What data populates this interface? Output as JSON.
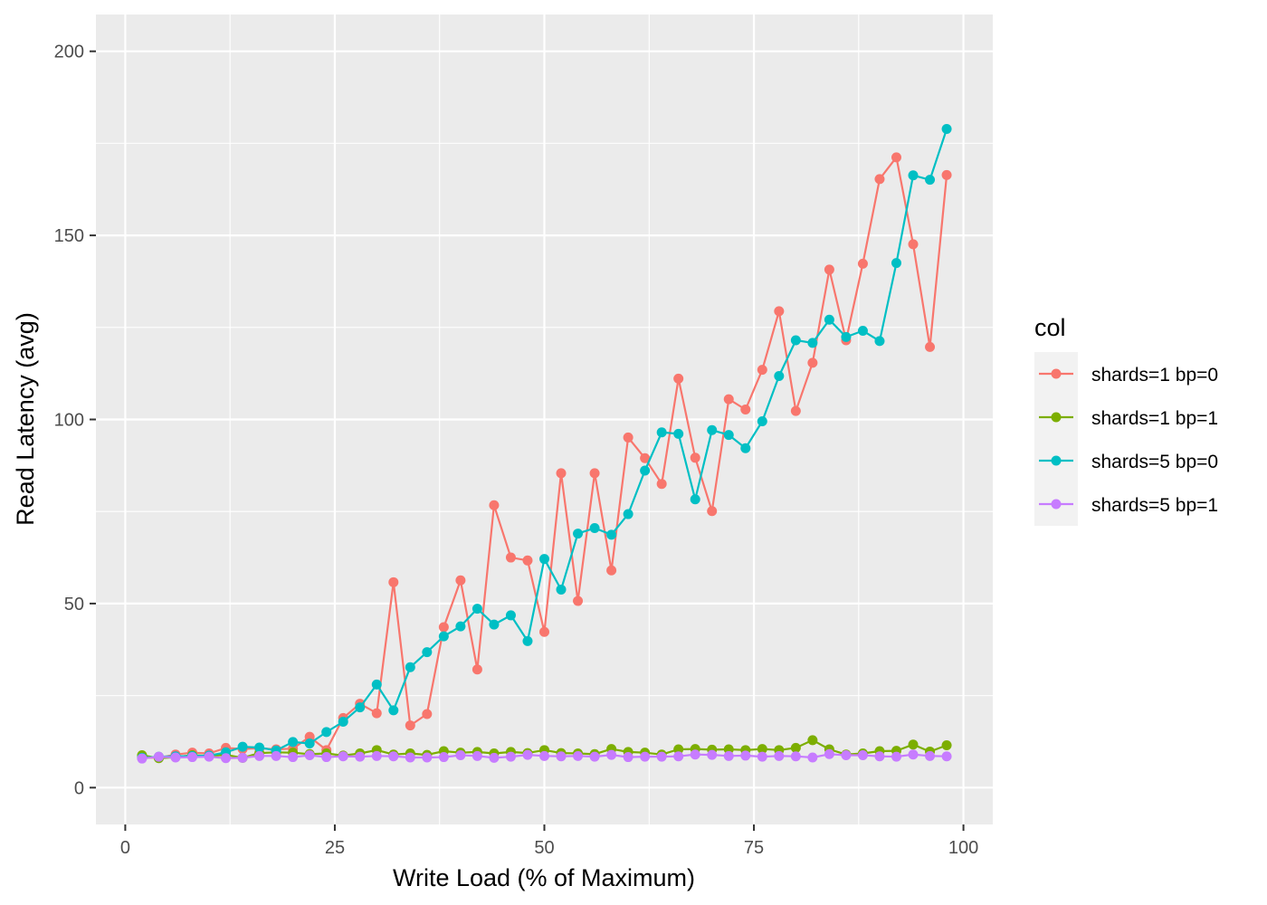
{
  "chart_data": {
    "type": "line",
    "title": "",
    "xlabel": "Write Load (% of Maximum)",
    "ylabel": "Read Latency (avg)",
    "xlim": [
      -3.5,
      103.5
    ],
    "ylim": [
      -10,
      210
    ],
    "x_ticks": [
      0,
      25,
      50,
      75,
      100
    ],
    "x_tick_labels": [
      "0",
      "25",
      "50",
      "75",
      "100"
    ],
    "y_ticks": [
      0,
      50,
      100,
      150,
      200
    ],
    "y_tick_labels": [
      "0",
      "50",
      "100",
      "150",
      "200"
    ],
    "grid": true,
    "legend": {
      "title": "col",
      "position": "right"
    },
    "x": [
      2,
      4,
      6,
      8,
      10,
      12,
      14,
      16,
      18,
      20,
      22,
      24,
      26,
      28,
      30,
      32,
      34,
      36,
      38,
      40,
      42,
      44,
      46,
      48,
      50,
      52,
      54,
      56,
      58,
      60,
      62,
      64,
      66,
      68,
      70,
      72,
      74,
      76,
      78,
      80,
      82,
      84,
      86,
      88,
      90,
      92,
      94,
      96,
      98
    ],
    "series": [
      {
        "name": "shards=1 bp=0",
        "color": "#F8766D",
        "values": [
          8.2,
          8.1,
          9.0,
          9.5,
          9.3,
          10.8,
          10.5,
          10.7,
          10.4,
          10.6,
          13.8,
          10.2,
          18.9,
          22.8,
          20.2,
          55.8,
          16.9,
          20.0,
          43.6,
          56.3,
          32.1,
          76.7,
          62.5,
          61.7,
          42.3,
          85.4,
          50.7,
          85.4,
          59.0,
          95.1,
          89.5,
          82.5,
          111.1,
          89.6,
          75.1,
          105.5,
          102.7,
          113.5,
          129.4,
          102.3,
          115.4,
          140.7,
          121.5,
          142.3,
          165.3,
          171.2,
          147.6,
          119.7,
          166.4
        ]
      },
      {
        "name": "shards=1 bp=1",
        "color": "#7CAE00",
        "values": [
          8.8,
          8.0,
          8.3,
          8.8,
          8.6,
          8.9,
          8.1,
          9.4,
          9.6,
          9.5,
          9.1,
          9.3,
          8.7,
          9.3,
          10.2,
          9.0,
          9.3,
          8.9,
          9.9,
          9.5,
          9.7,
          9.3,
          9.7,
          9.4,
          10.2,
          9.4,
          9.3,
          9.1,
          10.5,
          9.7,
          9.5,
          9.0,
          10.4,
          10.5,
          10.3,
          10.4,
          10.2,
          10.5,
          10.2,
          10.8,
          12.9,
          10.4,
          9.0,
          9.3,
          9.9,
          10.0,
          11.7,
          9.8,
          11.5
        ]
      },
      {
        "name": "shards=5 bp=0",
        "color": "#00BFC4",
        "values": [
          8.1,
          8.4,
          8.5,
          8.6,
          8.7,
          9.6,
          11.1,
          10.9,
          10.1,
          12.4,
          12.0,
          15.1,
          17.9,
          21.8,
          28.0,
          21.0,
          32.7,
          36.8,
          41.1,
          43.8,
          48.6,
          44.3,
          46.8,
          39.8,
          62.1,
          53.8,
          69.0,
          70.5,
          68.7,
          74.3,
          86.1,
          96.5,
          96.1,
          78.3,
          97.1,
          95.8,
          92.2,
          99.5,
          111.8,
          121.5,
          120.8,
          127.1,
          122.4,
          124.1,
          121.3,
          142.5,
          166.3,
          165.1,
          178.9
        ]
      },
      {
        "name": "shards=5 bp=1",
        "color": "#C77CFF",
        "values": [
          7.9,
          8.4,
          8.2,
          8.3,
          8.4,
          8.0,
          8.1,
          8.6,
          8.6,
          8.3,
          8.8,
          8.3,
          8.5,
          8.4,
          8.6,
          8.5,
          8.2,
          8.2,
          8.3,
          8.8,
          8.6,
          8.1,
          8.4,
          8.9,
          8.6,
          8.5,
          8.6,
          8.4,
          8.9,
          8.3,
          8.4,
          8.4,
          8.5,
          9.0,
          8.9,
          8.6,
          8.7,
          8.4,
          8.6,
          8.5,
          8.2,
          9.1,
          8.8,
          8.8,
          8.5,
          8.4,
          9.0,
          8.6,
          8.5
        ]
      }
    ]
  }
}
